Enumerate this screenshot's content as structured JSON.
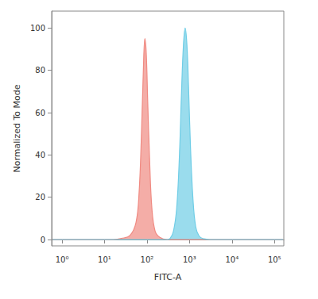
{
  "chart_data": {
    "type": "area",
    "x_label": "FITC-A",
    "y_label": "Normalized To Mode",
    "log": "x",
    "grid": false,
    "xlim": [
      0.57,
      166000
    ],
    "xticks": [
      {
        "value": 1,
        "label": "10⁰"
      },
      {
        "value": 10,
        "label": "10¹"
      },
      {
        "value": 100,
        "label": "10²"
      },
      {
        "value": 1000,
        "label": "10³"
      },
      {
        "value": 10000,
        "label": "10⁴"
      },
      {
        "value": 100000,
        "label": "10⁵"
      }
    ],
    "ylim": [
      -3,
      108
    ],
    "yticks": [
      0,
      20,
      40,
      60,
      80,
      100
    ],
    "series": [
      {
        "color": "#f08a82",
        "x": [
          0.6,
          16,
          25,
          40,
          55,
          65,
          74,
          82,
          89,
          96,
          104,
          115,
          130,
          155,
          200,
          300,
          160000
        ],
        "values": [
          0,
          0,
          0.5,
          2,
          8,
          22,
          50,
          80,
          95,
          88,
          65,
          38,
          15,
          4,
          1,
          0,
          0
        ]
      },
      {
        "color": "#6fcde6",
        "x": [
          0.6,
          300,
          350,
          420,
          500,
          580,
          650,
          720,
          790,
          870,
          950,
          1050,
          1200,
          1400,
          1700,
          2200,
          3000,
          160000
        ],
        "values": [
          0,
          0,
          0.5,
          4,
          15,
          40,
          70,
          92,
          100,
          92,
          72,
          45,
          20,
          6,
          1.5,
          0.3,
          0,
          0
        ]
      }
    ]
  }
}
